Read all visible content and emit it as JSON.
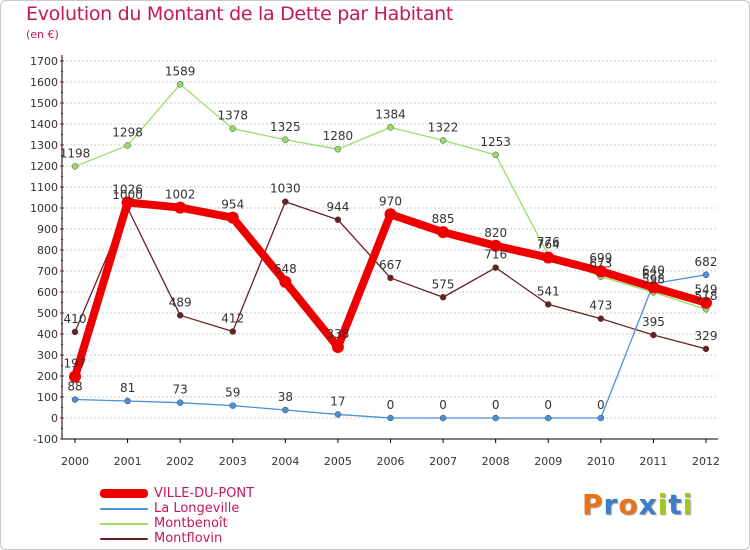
{
  "title": "Evolution du Montant de la Dette par Habitant",
  "unit_label": "(en €)",
  "brand": "Proxiti",
  "colors": {
    "title": "#c2185b",
    "grid": "#cccccc",
    "axis": "#000000",
    "VILLE-DU-PONT": "#ee0000",
    "La Longeville": "#4a90d9",
    "Montbenoît": "#99dd66",
    "Montflovin": "#6b1f1f",
    "brand_letters": [
      "#e8731a",
      "#3a7fc8",
      "#e8731a",
      "#3a7fc8",
      "#a0c81e",
      "#3a7fc8",
      "#a0c81e"
    ]
  },
  "chart_data": {
    "type": "line",
    "title": "Evolution du Montant de la Dette par Habitant",
    "ylabel": "(en €)",
    "xlabel": "",
    "categories": [
      "2000",
      "2001",
      "2002",
      "2003",
      "2004",
      "2005",
      "2006",
      "2007",
      "2008",
      "2009",
      "2010",
      "2011",
      "2012"
    ],
    "ylim": [
      -100,
      1700
    ],
    "yticks": [
      -100,
      0,
      100,
      200,
      300,
      400,
      500,
      600,
      700,
      800,
      900,
      1000,
      1100,
      1200,
      1300,
      1400,
      1500,
      1600,
      1700
    ],
    "grid": "horizontal",
    "legend_position": "bottom-left",
    "series": [
      {
        "name": "Montbenoît",
        "values": [
          1198,
          1298,
          1589,
          1378,
          1325,
          1280,
          1384,
          1322,
          1253,
          776,
          673,
          598,
          518
        ],
        "labels": [
          "1198",
          "1298",
          "1589",
          "1378",
          "1325",
          "1280",
          "1384",
          "1322",
          "1253",
          "776",
          "673",
          "598",
          "518"
        ]
      },
      {
        "name": "Montflovin",
        "values": [
          410,
          1000,
          489,
          412,
          1030,
          944,
          667,
          575,
          716,
          541,
          473,
          395,
          329
        ],
        "labels": [
          "410",
          "1000",
          "489",
          "412",
          "1030",
          "944",
          "667",
          "575",
          "716",
          "541",
          "473",
          "395",
          "329"
        ]
      },
      {
        "name": "La Longeville",
        "values": [
          88,
          81,
          73,
          59,
          38,
          17,
          0,
          0,
          0,
          0,
          0,
          640,
          682
        ],
        "labels": [
          "88",
          "81",
          "73",
          "59",
          "38",
          "17",
          "0",
          "0",
          "0",
          "0",
          "0",
          "640",
          "682"
        ]
      },
      {
        "name": "VILLE-DU-PONT",
        "values": [
          197,
          1026,
          1002,
          954,
          648,
          338,
          970,
          885,
          820,
          764,
          699,
          622,
          549
        ],
        "labels": [
          "197",
          "1026",
          "1002",
          "954",
          "648",
          "338",
          "970",
          "885",
          "820",
          "764",
          "699",
          "622",
          "549"
        ]
      }
    ]
  },
  "legend": [
    "VILLE-DU-PONT",
    "La Longeville",
    "Montbenoît",
    "Montflovin"
  ]
}
